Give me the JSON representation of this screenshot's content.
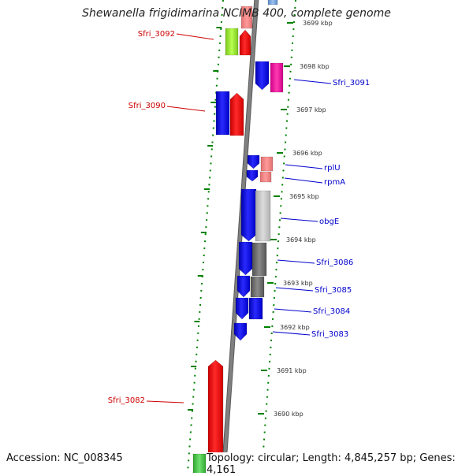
{
  "title": "Shewanella frigidimarina NCIMB 400, complete genome",
  "accession": "Accession: NC_008345",
  "topology": "Topology: circular; Length: 4,845,257 bp; Genes: 4,161",
  "colors": {
    "backbone": "#808080",
    "ruler": "#008000",
    "label_forward": "#0000cc",
    "label_reverse": "#cc0000"
  },
  "ticks": [
    {
      "label": "3690 kbp"
    },
    {
      "label": "3691 kbp"
    },
    {
      "label": "3692 kbp"
    },
    {
      "label": "3693 kbp"
    },
    {
      "label": "3694 kbp"
    },
    {
      "label": "3695 kbp"
    },
    {
      "label": "3696 kbp"
    },
    {
      "label": "3697 kbp"
    },
    {
      "label": "3698 kbp"
    },
    {
      "label": "3699 kbp"
    }
  ],
  "genes": [
    {
      "label": "Sfri_3092",
      "strand": "reverse"
    },
    {
      "label": "Sfri_3091",
      "strand": "forward"
    },
    {
      "label": "Sfri_3090",
      "strand": "reverse"
    },
    {
      "label": "rplU",
      "strand": "forward"
    },
    {
      "label": "rpmA",
      "strand": "forward"
    },
    {
      "label": "obgE",
      "strand": "forward"
    },
    {
      "label": "Sfri_3086",
      "strand": "forward"
    },
    {
      "label": "Sfri_3085",
      "strand": "forward"
    },
    {
      "label": "Sfri_3084",
      "strand": "forward"
    },
    {
      "label": "Sfri_3083",
      "strand": "forward"
    },
    {
      "label": "Sfri_3082",
      "strand": "reverse"
    }
  ]
}
